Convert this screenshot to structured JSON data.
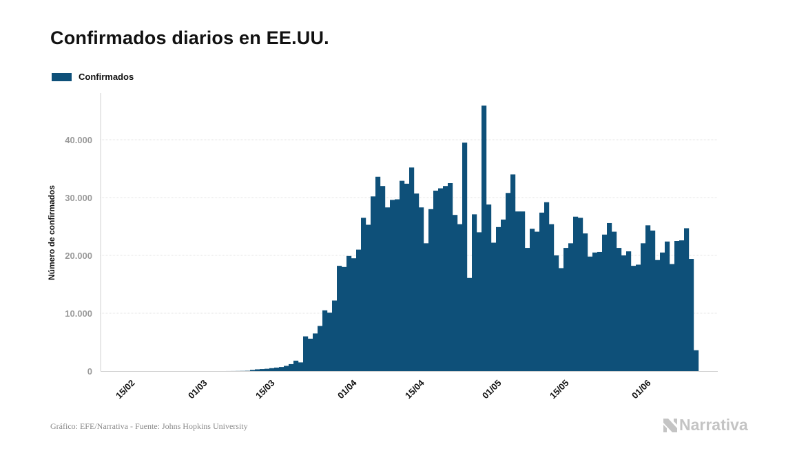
{
  "header": {
    "title": "Confirmados diarios en EE.UU."
  },
  "footer": {
    "source": "Gráfico: EFE/Narrativa - Fuente: Johns Hopkins University",
    "brand": "Narrativa"
  },
  "colors": {
    "bar": "#0e5079",
    "grid": "#e3e3e3",
    "axis": "#d0d0d0",
    "brand": "#c4c4c4"
  },
  "icons": {
    "brand_logo": "narrativa-n-icon"
  },
  "chart_data": {
    "type": "bar",
    "title": "Confirmados diarios en EE.UU.",
    "ylabel": "Número de confirmados",
    "xlabel": "",
    "ylim": [
      0,
      48000
    ],
    "grid": true,
    "legend": {
      "position": "top-left",
      "entries": [
        "Confirmados"
      ]
    },
    "y_ticks": [
      {
        "value": 0,
        "label": "0"
      },
      {
        "value": 10000,
        "label": "10.000"
      },
      {
        "value": 20000,
        "label": "20.000"
      },
      {
        "value": 30000,
        "label": "30.000"
      },
      {
        "value": 40000,
        "label": "40.000"
      }
    ],
    "x_ticks": [
      {
        "date": "2020-02-15",
        "label": "15/02"
      },
      {
        "date": "2020-03-01",
        "label": "01/03"
      },
      {
        "date": "2020-03-15",
        "label": "15/03"
      },
      {
        "date": "2020-04-01",
        "label": "01/04"
      },
      {
        "date": "2020-04-15",
        "label": "15/04"
      },
      {
        "date": "2020-05-01",
        "label": "01/05"
      },
      {
        "date": "2020-05-15",
        "label": "15/05"
      },
      {
        "date": "2020-06-01",
        "label": "01/06"
      }
    ],
    "x_start": "2020-02-15",
    "series": [
      {
        "name": "Confirmados",
        "values": [
          0,
          0,
          0,
          0,
          0,
          0,
          0,
          0,
          0,
          0,
          0,
          0,
          0,
          0,
          0,
          0,
          0,
          0,
          0,
          0,
          0,
          5,
          10,
          20,
          30,
          50,
          200,
          300,
          350,
          400,
          500,
          600,
          700,
          900,
          1200,
          1800,
          1500,
          6000,
          5600,
          6500,
          7800,
          10500,
          10100,
          12200,
          18200,
          18000,
          19900,
          19500,
          21000,
          26500,
          25300,
          30200,
          33600,
          32000,
          28300,
          29600,
          29700,
          32900,
          32400,
          35200,
          30700,
          28300,
          22100,
          28000,
          31200,
          31600,
          32000,
          32500,
          27000,
          25400,
          39500,
          16100,
          27100,
          24000,
          45900,
          28800,
          22200,
          24900,
          26200,
          30800,
          34000,
          27600,
          27600,
          21300,
          24600,
          24100,
          27400,
          29200,
          25400,
          20000,
          17800,
          21300,
          22100,
          26700,
          26500,
          23800,
          19800,
          20500,
          20600,
          23600,
          25600,
          24100,
          21300,
          20000,
          20700,
          18200,
          18400,
          22100,
          25200,
          24300,
          19200,
          20500,
          22400,
          18500,
          22500,
          22600,
          24700,
          19400,
          3600
        ]
      }
    ]
  }
}
